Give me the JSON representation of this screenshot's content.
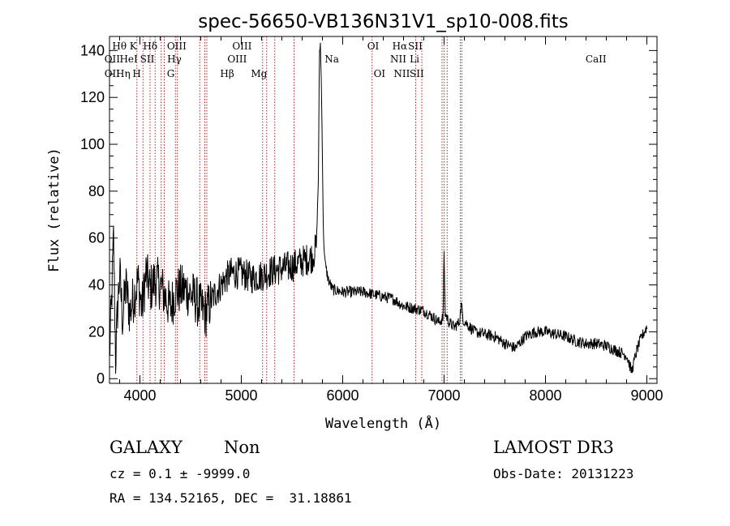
{
  "chart_data": {
    "type": "line",
    "title": "spec-56650-VB136N31V1_sp10-008.fits",
    "xlabel": "Wavelength (Å)",
    "ylabel": "Flux (relative)",
    "xlim": [
      3700,
      9100
    ],
    "ylim": [
      -2,
      146
    ],
    "xticks": [
      4000,
      5000,
      6000,
      7000,
      8000,
      9000
    ],
    "yticks": [
      0,
      20,
      40,
      60,
      80,
      100,
      120,
      140
    ],
    "line_color": "#000000",
    "marker_color": "#b22222",
    "anchors": [
      [
        3700,
        10
      ],
      [
        3720,
        32
      ],
      [
        3740,
        60
      ],
      [
        3760,
        8
      ],
      [
        3780,
        30
      ],
      [
        3800,
        45
      ],
      [
        3830,
        25
      ],
      [
        3860,
        40
      ],
      [
        3900,
        28
      ],
      [
        3940,
        35
      ],
      [
        3980,
        42
      ],
      [
        4020,
        30
      ],
      [
        4060,
        45
      ],
      [
        4100,
        38
      ],
      [
        4150,
        42
      ],
      [
        4200,
        40
      ],
      [
        4250,
        35
      ],
      [
        4300,
        30
      ],
      [
        4350,
        37
      ],
      [
        4400,
        38
      ],
      [
        4450,
        38
      ],
      [
        4500,
        36
      ],
      [
        4550,
        34
      ],
      [
        4600,
        30
      ],
      [
        4650,
        28
      ],
      [
        4700,
        33
      ],
      [
        4750,
        37
      ],
      [
        4800,
        40
      ],
      [
        4850,
        43
      ],
      [
        4900,
        45
      ],
      [
        5000,
        45
      ],
      [
        5100,
        43
      ],
      [
        5200,
        44
      ],
      [
        5300,
        46
      ],
      [
        5400,
        47
      ],
      [
        5500,
        48
      ],
      [
        5600,
        50
      ],
      [
        5700,
        52
      ],
      [
        5740,
        56
      ],
      [
        5760,
        85
      ],
      [
        5770,
        138
      ],
      [
        5780,
        143
      ],
      [
        5790,
        125
      ],
      [
        5800,
        95
      ],
      [
        5810,
        60
      ],
      [
        5830,
        48
      ],
      [
        5860,
        42
      ],
      [
        5900,
        38
      ],
      [
        6000,
        37
      ],
      [
        6100,
        37
      ],
      [
        6200,
        37
      ],
      [
        6300,
        36
      ],
      [
        6400,
        35
      ],
      [
        6500,
        34
      ],
      [
        6600,
        31
      ],
      [
        6700,
        30
      ],
      [
        6800,
        29
      ],
      [
        6900,
        26
      ],
      [
        6950,
        24
      ],
      [
        6990,
        26
      ],
      [
        7000,
        55
      ],
      [
        7010,
        28
      ],
      [
        7050,
        24
      ],
      [
        7100,
        22
      ],
      [
        7150,
        24
      ],
      [
        7170,
        32
      ],
      [
        7190,
        25
      ],
      [
        7300,
        20
      ],
      [
        7400,
        19
      ],
      [
        7500,
        18
      ],
      [
        7600,
        15
      ],
      [
        7700,
        13
      ],
      [
        7800,
        18
      ],
      [
        7900,
        20
      ],
      [
        8000,
        20
      ],
      [
        8100,
        19
      ],
      [
        8200,
        18
      ],
      [
        8300,
        16
      ],
      [
        8400,
        15
      ],
      [
        8500,
        15
      ],
      [
        8600,
        14
      ],
      [
        8700,
        12
      ],
      [
        8800,
        10
      ],
      [
        8850,
        3
      ],
      [
        8900,
        12
      ],
      [
        8950,
        18
      ],
      [
        9000,
        22
      ]
    ],
    "lines": [
      {
        "name": "OII",
        "wl": 3727,
        "row": 2
      },
      {
        "name": "OII",
        "wl": 3727,
        "row": 3
      },
      {
        "name": "Hθ",
        "wl": 3798,
        "row": 1
      },
      {
        "name": "Hη",
        "wl": 3835,
        "row": 3
      },
      {
        "name": "HeI",
        "wl": 3889,
        "row": 2
      },
      {
        "name": "K",
        "wl": 3934,
        "row": 1
      },
      {
        "name": "H",
        "wl": 3969,
        "row": 3
      },
      {
        "name": "Hδ",
        "wl": 4102,
        "row": 1
      },
      {
        "name": "SII",
        "wl": 4072,
        "row": 2
      },
      {
        "name": "OIII",
        "wl": 4363,
        "row": 1
      },
      {
        "name": "Hγ",
        "wl": 4340,
        "row": 2
      },
      {
        "name": "G",
        "wl": 4304,
        "row": 3
      },
      {
        "name": "Hβ",
        "wl": 4861,
        "row": 3
      },
      {
        "name": "OIII",
        "wl": 4959,
        "row": 2
      },
      {
        "name": "OIII",
        "wl": 5007,
        "row": 1
      },
      {
        "name": "Mg",
        "wl": 5175,
        "row": 3
      },
      {
        "name": "Na",
        "wl": 5893,
        "row": 2
      },
      {
        "name": "OI",
        "wl": 6300,
        "row": 1
      },
      {
        "name": "OI",
        "wl": 6363,
        "row": 3
      },
      {
        "name": "NII",
        "wl": 6548,
        "row": 2
      },
      {
        "name": "Hα",
        "wl": 6563,
        "row": 1
      },
      {
        "name": "NII",
        "wl": 6583,
        "row": 3
      },
      {
        "name": "Li",
        "wl": 6708,
        "row": 2
      },
      {
        "name": "SII",
        "wl": 6716,
        "row": 1
      },
      {
        "name": "SII",
        "wl": 6731,
        "row": 3
      },
      {
        "name": "CaII",
        "wl": 8498,
        "row": 2
      }
    ],
    "marker_wavelengths": [
      3970,
      4030,
      4100,
      4150,
      4210,
      4240,
      4350,
      4370,
      4590,
      4640,
      4660,
      5210,
      5250,
      5330,
      5520,
      6290,
      6720,
      6780,
      6980,
      7000,
      7030,
      7160,
      7175
    ]
  },
  "info": {
    "object_type": "GALAXY",
    "subclass": "Non",
    "survey": "LAMOST DR3",
    "cz": "cz = 0.1 ± -9999.0",
    "obs_date": "Obs-Date: 20131223",
    "radec": "RA = 134.52165, DEC =  31.18861"
  }
}
